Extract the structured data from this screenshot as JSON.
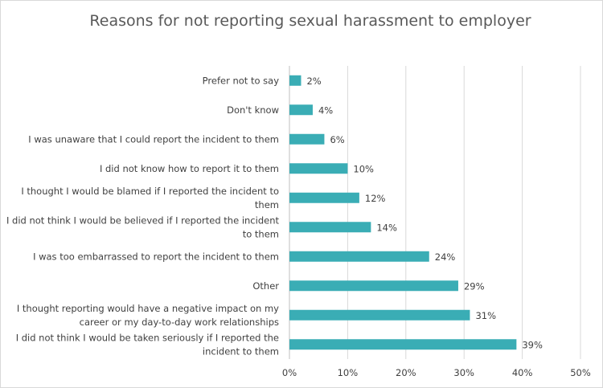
{
  "chart_data": {
    "type": "bar",
    "orientation": "horizontal",
    "title": "Reasons for not reporting sexual harassment to employer",
    "categories": [
      [
        "Prefer not to say"
      ],
      [
        "Don't know"
      ],
      [
        "I was unaware that I could report the incident to them"
      ],
      [
        "I did not know how to report it to them"
      ],
      [
        "I thought I would be blamed if I reported the incident to",
        "them"
      ],
      [
        "I did not think I would be believed if I reported the incident",
        "to them"
      ],
      [
        "I was too embarrassed to report the incident to them"
      ],
      [
        "Other"
      ],
      [
        "I thought reporting would have a negative impact on my",
        "career or my day-to-day work relationships"
      ],
      [
        "I did not think I would be taken seriously if I reported the",
        "incident to them"
      ]
    ],
    "values": [
      2,
      4,
      6,
      10,
      12,
      14,
      24,
      29,
      31,
      39
    ],
    "value_labels": [
      "2%",
      "4%",
      "6%",
      "10%",
      "12%",
      "14%",
      "24%",
      "29%",
      "31%",
      "39%"
    ],
    "xlim": [
      0,
      50
    ],
    "xticks": [
      0,
      10,
      20,
      30,
      40,
      50
    ],
    "xtick_labels": [
      "0%",
      "10%",
      "20%",
      "30%",
      "40%",
      "50%"
    ],
    "xlabel": "",
    "ylabel": "",
    "grid": true,
    "legend": "none",
    "bar_color": "#3aadb5"
  }
}
